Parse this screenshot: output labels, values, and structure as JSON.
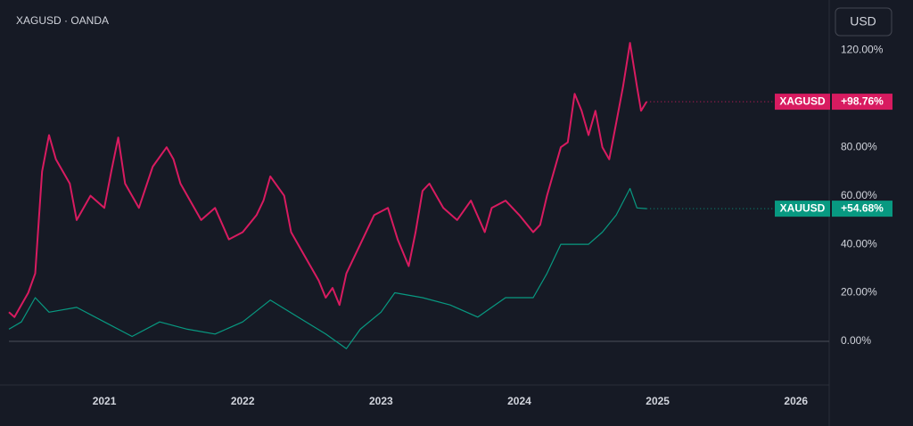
{
  "chart_data": {
    "type": "line",
    "title": "XAGUSD · OANDA",
    "currency": "USD",
    "xlim": [
      2020.31,
      2026.24
    ],
    "xticks": [
      2021,
      2022,
      2023,
      2024,
      2025,
      2026
    ],
    "ylim": [
      -18,
      137
    ],
    "yticks": [
      {
        "value": 0,
        "label": "0.00%"
      },
      {
        "value": 20,
        "label": "20.00%"
      },
      {
        "value": 40,
        "label": "40.00%"
      },
      {
        "value": 60,
        "label": "60.00%"
      },
      {
        "value": 80,
        "label": "80.00%"
      },
      {
        "value": 120,
        "label": "120.00%"
      }
    ],
    "series": [
      {
        "name": "XAGUSD",
        "color": "#d81b60",
        "last_label": "+98.76%",
        "x": [
          2020.31,
          2020.35,
          2020.45,
          2020.5,
          2020.55,
          2020.6,
          2020.65,
          2020.75,
          2020.8,
          2020.9,
          2021.0,
          2021.05,
          2021.1,
          2021.15,
          2021.25,
          2021.35,
          2021.45,
          2021.5,
          2021.55,
          2021.6,
          2021.7,
          2021.8,
          2021.9,
          2022.0,
          2022.1,
          2022.15,
          2022.2,
          2022.3,
          2022.35,
          2022.45,
          2022.55,
          2022.6,
          2022.65,
          2022.7,
          2022.75,
          2022.85,
          2022.95,
          2023.05,
          2023.12,
          2023.2,
          2023.25,
          2023.3,
          2023.35,
          2023.45,
          2023.55,
          2023.65,
          2023.75,
          2023.8,
          2023.9,
          2024.0,
          2024.1,
          2024.15,
          2024.2,
          2024.3,
          2024.35,
          2024.4,
          2024.45,
          2024.5,
          2024.55,
          2024.6,
          2024.65,
          2024.7,
          2024.75,
          2024.8,
          2024.85,
          2024.88,
          2024.92
        ],
        "values": [
          12,
          10,
          20,
          28,
          70,
          85,
          75,
          65,
          50,
          60,
          55,
          70,
          84,
          65,
          55,
          72,
          80,
          75,
          65,
          60,
          50,
          55,
          42,
          45,
          52,
          58,
          68,
          60,
          45,
          35,
          25,
          18,
          22,
          15,
          28,
          40,
          52,
          55,
          42,
          31,
          45,
          62,
          65,
          55,
          50,
          58,
          45,
          55,
          58,
          52,
          45,
          48,
          60,
          80,
          82,
          102,
          95,
          85,
          95,
          80,
          75,
          90,
          105,
          123,
          105,
          95,
          98.76
        ]
      },
      {
        "name": "XAUUSD",
        "color": "#089981",
        "last_label": "+54.68%",
        "x": [
          2020.31,
          2020.4,
          2020.5,
          2020.6,
          2020.8,
          2021.0,
          2021.2,
          2021.4,
          2021.6,
          2021.8,
          2022.0,
          2022.2,
          2022.4,
          2022.6,
          2022.75,
          2022.85,
          2023.0,
          2023.1,
          2023.3,
          2023.5,
          2023.7,
          2023.9,
          2024.1,
          2024.2,
          2024.3,
          2024.5,
          2024.6,
          2024.7,
          2024.8,
          2024.85,
          2024.92
        ],
        "values": [
          5,
          8,
          18,
          12,
          14,
          8,
          2,
          8,
          5,
          3,
          8,
          17,
          10,
          3,
          -3,
          5,
          12,
          20,
          18,
          15,
          10,
          18,
          18,
          28,
          40,
          40,
          45,
          52,
          63,
          55,
          54.68
        ]
      }
    ]
  }
}
